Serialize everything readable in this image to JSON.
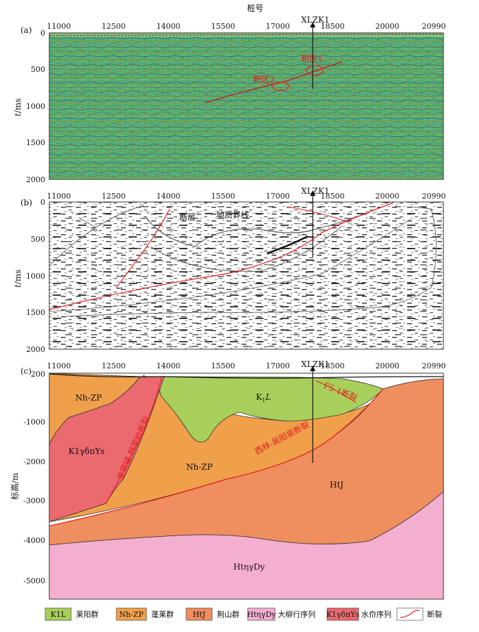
{
  "header": {
    "stake_title": "桩号"
  },
  "stakes": [
    "11000",
    "12500",
    "14000",
    "15500",
    "17000",
    "18500",
    "20000",
    "20990"
  ],
  "well": "XLZK1",
  "panel_a": {
    "label": "(a)",
    "ylabel_italic": "t",
    "ylabel_unit": "/ms",
    "yticks": [
      "0",
      "500",
      "1000",
      "1500",
      "2000"
    ],
    "zone1": "靶区1",
    "zone2": "靶区2"
  },
  "panel_b": {
    "label": "(b)",
    "ylabel_italic": "t",
    "ylabel_unit": "/ms",
    "yticks": [
      "0",
      "500",
      "1000",
      "1500",
      "2000"
    ],
    "fault_label": "断层",
    "boundary_label": "地质界线"
  },
  "panel_c": {
    "label": "(c)",
    "ylabel": "标高/m",
    "yticks": [
      "200",
      "-1000",
      "-2000",
      "-3000",
      "-4000",
      "-5000"
    ],
    "unit_K1L": "K1L",
    "unit_K1L_main": "K",
    "unit_K1L_sub": "1",
    "unit_K1L_end": "L",
    "unit_NhZP_left": "Nh-ZP",
    "unit_NhZP_center": "Nh-ZP",
    "unit_K1g": "K1γδπYs",
    "unit_HtJ": "HtJ",
    "unit_HtDy": "HtηγDy",
    "fault_longkou": "龙窝镇-韩家岭断裂",
    "fault_xilin": "西林-吴阳泉断裂",
    "fault_F": "F5-1断裂"
  },
  "legend": [
    {
      "code": "K1L",
      "name": "莱阳群",
      "color": "#a8cf5b"
    },
    {
      "code": "Nh-ZP",
      "name": "蓬莱群",
      "color": "#f0a04b"
    },
    {
      "code": "HtJ",
      "name": "荆山群",
      "color": "#ef8e5e"
    },
    {
      "code": "HtηγDy",
      "name": "大柳行序列",
      "color": "#f4afd0"
    },
    {
      "code": "K1γδπYs",
      "name": "水夼序列",
      "color": "#eb6a70"
    },
    {
      "code": "",
      "name": "断裂",
      "color": "#e02020"
    }
  ]
}
